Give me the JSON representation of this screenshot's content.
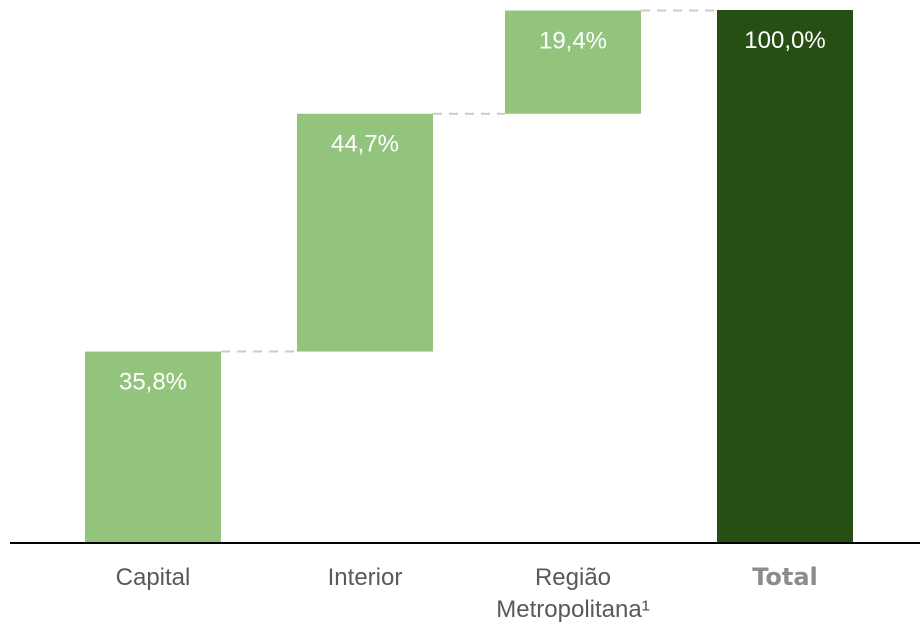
{
  "chart_data": {
    "type": "waterfall",
    "categories": [
      "Capital",
      "Interior",
      "Região Metropolitana¹",
      "Total"
    ],
    "category_lines": [
      [
        "Capital"
      ],
      [
        "Interior"
      ],
      [
        "Região",
        "Metropolitana¹"
      ],
      [
        "Total"
      ]
    ],
    "values": [
      35.8,
      44.7,
      19.4,
      100.0
    ],
    "data_labels": [
      "35,8%",
      "44,7%",
      "19,4%",
      "100,0%"
    ],
    "is_total": [
      false,
      false,
      false,
      true
    ],
    "ylim": [
      0,
      100
    ],
    "title": "",
    "xlabel": "",
    "ylabel": "",
    "grid": false,
    "colors": {
      "increment": "#93c47d",
      "total": "#274e13",
      "connector": "#cccccc",
      "baseline": "#000000"
    }
  }
}
